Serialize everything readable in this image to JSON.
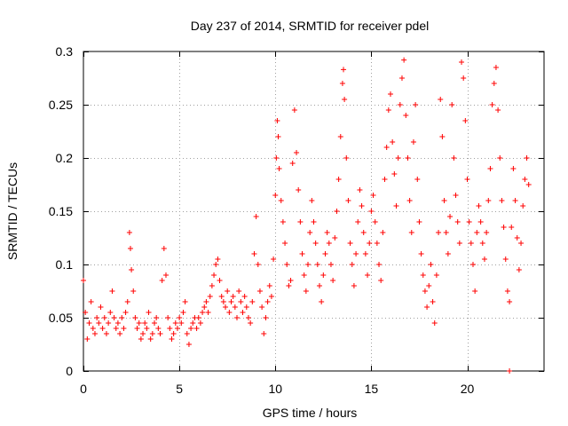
{
  "chart_data": {
    "type": "scatter",
    "title": "Day 237 of 2014, SRMTID for receiver pdel",
    "xlabel": "GPS time / hours",
    "ylabel": "SRMTID / TECUs",
    "xlim": [
      0,
      24
    ],
    "ylim": [
      0,
      0.3
    ],
    "x_ticks": [
      0,
      5,
      10,
      15,
      20
    ],
    "x_tick_labels": [
      "0",
      "5",
      "10",
      "15",
      "20"
    ],
    "y_ticks": [
      0,
      0.05,
      0.1,
      0.15,
      0.2,
      0.25,
      0.3
    ],
    "y_tick_labels": [
      "0",
      "0.05",
      "0.1",
      "0.15",
      "0.2",
      "0.25",
      "0.3"
    ],
    "grid": true,
    "marker": "plus",
    "color": "#ff0000",
    "series": [
      {
        "name": "SRMTID",
        "points": [
          [
            0.0,
            0.085
          ],
          [
            0.1,
            0.055
          ],
          [
            0.2,
            0.03
          ],
          [
            0.3,
            0.045
          ],
          [
            0.4,
            0.065
          ],
          [
            0.5,
            0.04
          ],
          [
            0.6,
            0.035
          ],
          [
            0.7,
            0.05
          ],
          [
            0.8,
            0.045
          ],
          [
            0.9,
            0.06
          ],
          [
            1.0,
            0.04
          ],
          [
            1.1,
            0.05
          ],
          [
            1.2,
            0.035
          ],
          [
            1.3,
            0.045
          ],
          [
            1.4,
            0.055
          ],
          [
            1.5,
            0.075
          ],
          [
            1.6,
            0.05
          ],
          [
            1.7,
            0.04
          ],
          [
            1.8,
            0.045
          ],
          [
            1.9,
            0.035
          ],
          [
            2.0,
            0.05
          ],
          [
            2.1,
            0.04
          ],
          [
            2.2,
            0.055
          ],
          [
            2.3,
            0.065
          ],
          [
            2.4,
            0.13
          ],
          [
            2.45,
            0.115
          ],
          [
            2.5,
            0.095
          ],
          [
            2.6,
            0.075
          ],
          [
            2.7,
            0.05
          ],
          [
            2.8,
            0.04
          ],
          [
            2.9,
            0.045
          ],
          [
            3.0,
            0.03
          ],
          [
            3.1,
            0.035
          ],
          [
            3.2,
            0.045
          ],
          [
            3.3,
            0.04
          ],
          [
            3.4,
            0.055
          ],
          [
            3.5,
            0.03
          ],
          [
            3.6,
            0.035
          ],
          [
            3.7,
            0.045
          ],
          [
            3.8,
            0.05
          ],
          [
            3.9,
            0.04
          ],
          [
            4.0,
            0.035
          ],
          [
            4.1,
            0.085
          ],
          [
            4.2,
            0.115
          ],
          [
            4.3,
            0.09
          ],
          [
            4.4,
            0.05
          ],
          [
            4.5,
            0.04
          ],
          [
            4.6,
            0.03
          ],
          [
            4.7,
            0.035
          ],
          [
            4.8,
            0.045
          ],
          [
            4.9,
            0.04
          ],
          [
            5.0,
            0.05
          ],
          [
            5.1,
            0.045
          ],
          [
            5.2,
            0.055
          ],
          [
            5.3,
            0.065
          ],
          [
            5.4,
            0.035
          ],
          [
            5.5,
            0.025
          ],
          [
            5.6,
            0.04
          ],
          [
            5.7,
            0.045
          ],
          [
            5.8,
            0.05
          ],
          [
            5.9,
            0.04
          ],
          [
            6.0,
            0.05
          ],
          [
            6.1,
            0.045
          ],
          [
            6.2,
            0.055
          ],
          [
            6.3,
            0.06
          ],
          [
            6.4,
            0.065
          ],
          [
            6.5,
            0.055
          ],
          [
            6.6,
            0.07
          ],
          [
            6.7,
            0.08
          ],
          [
            6.8,
            0.09
          ],
          [
            6.9,
            0.1
          ],
          [
            7.0,
            0.105
          ],
          [
            7.1,
            0.085
          ],
          [
            7.2,
            0.07
          ],
          [
            7.3,
            0.065
          ],
          [
            7.4,
            0.06
          ],
          [
            7.5,
            0.075
          ],
          [
            7.6,
            0.055
          ],
          [
            7.7,
            0.065
          ],
          [
            7.8,
            0.07
          ],
          [
            7.9,
            0.06
          ],
          [
            8.0,
            0.05
          ],
          [
            8.1,
            0.075
          ],
          [
            8.2,
            0.065
          ],
          [
            8.3,
            0.055
          ],
          [
            8.4,
            0.07
          ],
          [
            8.5,
            0.06
          ],
          [
            8.6,
            0.05
          ],
          [
            8.7,
            0.045
          ],
          [
            8.8,
            0.065
          ],
          [
            8.9,
            0.11
          ],
          [
            9.0,
            0.145
          ],
          [
            9.1,
            0.1
          ],
          [
            9.2,
            0.075
          ],
          [
            9.3,
            0.06
          ],
          [
            9.4,
            0.035
          ],
          [
            9.5,
            0.05
          ],
          [
            9.6,
            0.065
          ],
          [
            9.7,
            0.08
          ],
          [
            9.8,
            0.07
          ],
          [
            9.9,
            0.105
          ],
          [
            10.0,
            0.165
          ],
          [
            10.05,
            0.2
          ],
          [
            10.1,
            0.235
          ],
          [
            10.15,
            0.22
          ],
          [
            10.2,
            0.19
          ],
          [
            10.3,
            0.16
          ],
          [
            10.4,
            0.14
          ],
          [
            10.5,
            0.12
          ],
          [
            10.6,
            0.1
          ],
          [
            10.7,
            0.08
          ],
          [
            10.8,
            0.085
          ],
          [
            10.9,
            0.195
          ],
          [
            11.0,
            0.245
          ],
          [
            11.1,
            0.205
          ],
          [
            11.2,
            0.17
          ],
          [
            11.3,
            0.14
          ],
          [
            11.4,
            0.11
          ],
          [
            11.5,
            0.09
          ],
          [
            11.6,
            0.075
          ],
          [
            11.7,
            0.1
          ],
          [
            11.8,
            0.13
          ],
          [
            11.9,
            0.16
          ],
          [
            12.0,
            0.14
          ],
          [
            12.1,
            0.12
          ],
          [
            12.2,
            0.1
          ],
          [
            12.3,
            0.08
          ],
          [
            12.4,
            0.065
          ],
          [
            12.5,
            0.09
          ],
          [
            12.6,
            0.11
          ],
          [
            12.7,
            0.13
          ],
          [
            12.8,
            0.12
          ],
          [
            12.9,
            0.1
          ],
          [
            13.0,
            0.085
          ],
          [
            13.1,
            0.125
          ],
          [
            13.2,
            0.15
          ],
          [
            13.3,
            0.18
          ],
          [
            13.4,
            0.22
          ],
          [
            13.5,
            0.27
          ],
          [
            13.55,
            0.283
          ],
          [
            13.6,
            0.255
          ],
          [
            13.7,
            0.2
          ],
          [
            13.8,
            0.16
          ],
          [
            13.9,
            0.12
          ],
          [
            14.0,
            0.1
          ],
          [
            14.1,
            0.08
          ],
          [
            14.2,
            0.11
          ],
          [
            14.3,
            0.14
          ],
          [
            14.4,
            0.17
          ],
          [
            14.5,
            0.155
          ],
          [
            14.6,
            0.13
          ],
          [
            14.7,
            0.11
          ],
          [
            14.8,
            0.09
          ],
          [
            14.9,
            0.12
          ],
          [
            15.0,
            0.15
          ],
          [
            15.1,
            0.165
          ],
          [
            15.2,
            0.14
          ],
          [
            15.3,
            0.12
          ],
          [
            15.4,
            0.1
          ],
          [
            15.5,
            0.085
          ],
          [
            15.6,
            0.13
          ],
          [
            15.7,
            0.18
          ],
          [
            15.8,
            0.21
          ],
          [
            15.9,
            0.245
          ],
          [
            16.0,
            0.26
          ],
          [
            16.1,
            0.215
          ],
          [
            16.2,
            0.185
          ],
          [
            16.3,
            0.155
          ],
          [
            16.4,
            0.2
          ],
          [
            16.5,
            0.25
          ],
          [
            16.6,
            0.275
          ],
          [
            16.7,
            0.292
          ],
          [
            16.8,
            0.24
          ],
          [
            16.9,
            0.2
          ],
          [
            17.0,
            0.16
          ],
          [
            17.1,
            0.13
          ],
          [
            17.2,
            0.215
          ],
          [
            17.3,
            0.25
          ],
          [
            17.4,
            0.18
          ],
          [
            17.5,
            0.14
          ],
          [
            17.6,
            0.11
          ],
          [
            17.7,
            0.09
          ],
          [
            17.8,
            0.075
          ],
          [
            17.9,
            0.06
          ],
          [
            18.0,
            0.08
          ],
          [
            18.1,
            0.1
          ],
          [
            18.2,
            0.065
          ],
          [
            18.3,
            0.045
          ],
          [
            18.4,
            0.09
          ],
          [
            18.5,
            0.13
          ],
          [
            18.6,
            0.255
          ],
          [
            18.7,
            0.22
          ],
          [
            18.8,
            0.16
          ],
          [
            18.9,
            0.13
          ],
          [
            19.0,
            0.11
          ],
          [
            19.1,
            0.145
          ],
          [
            19.2,
            0.25
          ],
          [
            19.3,
            0.2
          ],
          [
            19.4,
            0.165
          ],
          [
            19.5,
            0.14
          ],
          [
            19.6,
            0.12
          ],
          [
            19.7,
            0.29
          ],
          [
            19.8,
            0.275
          ],
          [
            19.9,
            0.235
          ],
          [
            20.0,
            0.18
          ],
          [
            20.1,
            0.14
          ],
          [
            20.2,
            0.12
          ],
          [
            20.3,
            0.1
          ],
          [
            20.4,
            0.075
          ],
          [
            20.5,
            0.13
          ],
          [
            20.6,
            0.155
          ],
          [
            20.7,
            0.14
          ],
          [
            20.8,
            0.12
          ],
          [
            20.9,
            0.105
          ],
          [
            21.0,
            0.13
          ],
          [
            21.1,
            0.16
          ],
          [
            21.2,
            0.19
          ],
          [
            21.3,
            0.25
          ],
          [
            21.4,
            0.27
          ],
          [
            21.5,
            0.285
          ],
          [
            21.6,
            0.245
          ],
          [
            21.7,
            0.2
          ],
          [
            21.8,
            0.16
          ],
          [
            21.9,
            0.135
          ],
          [
            22.0,
            0.105
          ],
          [
            22.1,
            0.075
          ],
          [
            22.2,
            0.065
          ],
          [
            22.3,
            0.135
          ],
          [
            22.4,
            0.19
          ],
          [
            22.5,
            0.16
          ],
          [
            22.6,
            0.125
          ],
          [
            22.7,
            0.095
          ],
          [
            22.8,
            0.12
          ],
          [
            22.9,
            0.155
          ],
          [
            23.0,
            0.18
          ],
          [
            23.1,
            0.2
          ],
          [
            23.2,
            0.175
          ],
          [
            22.2,
            0.0
          ]
        ]
      }
    ]
  },
  "colors": {
    "marker": "#ff0000",
    "grid": "#a0a0a0",
    "frame": "#000000"
  }
}
